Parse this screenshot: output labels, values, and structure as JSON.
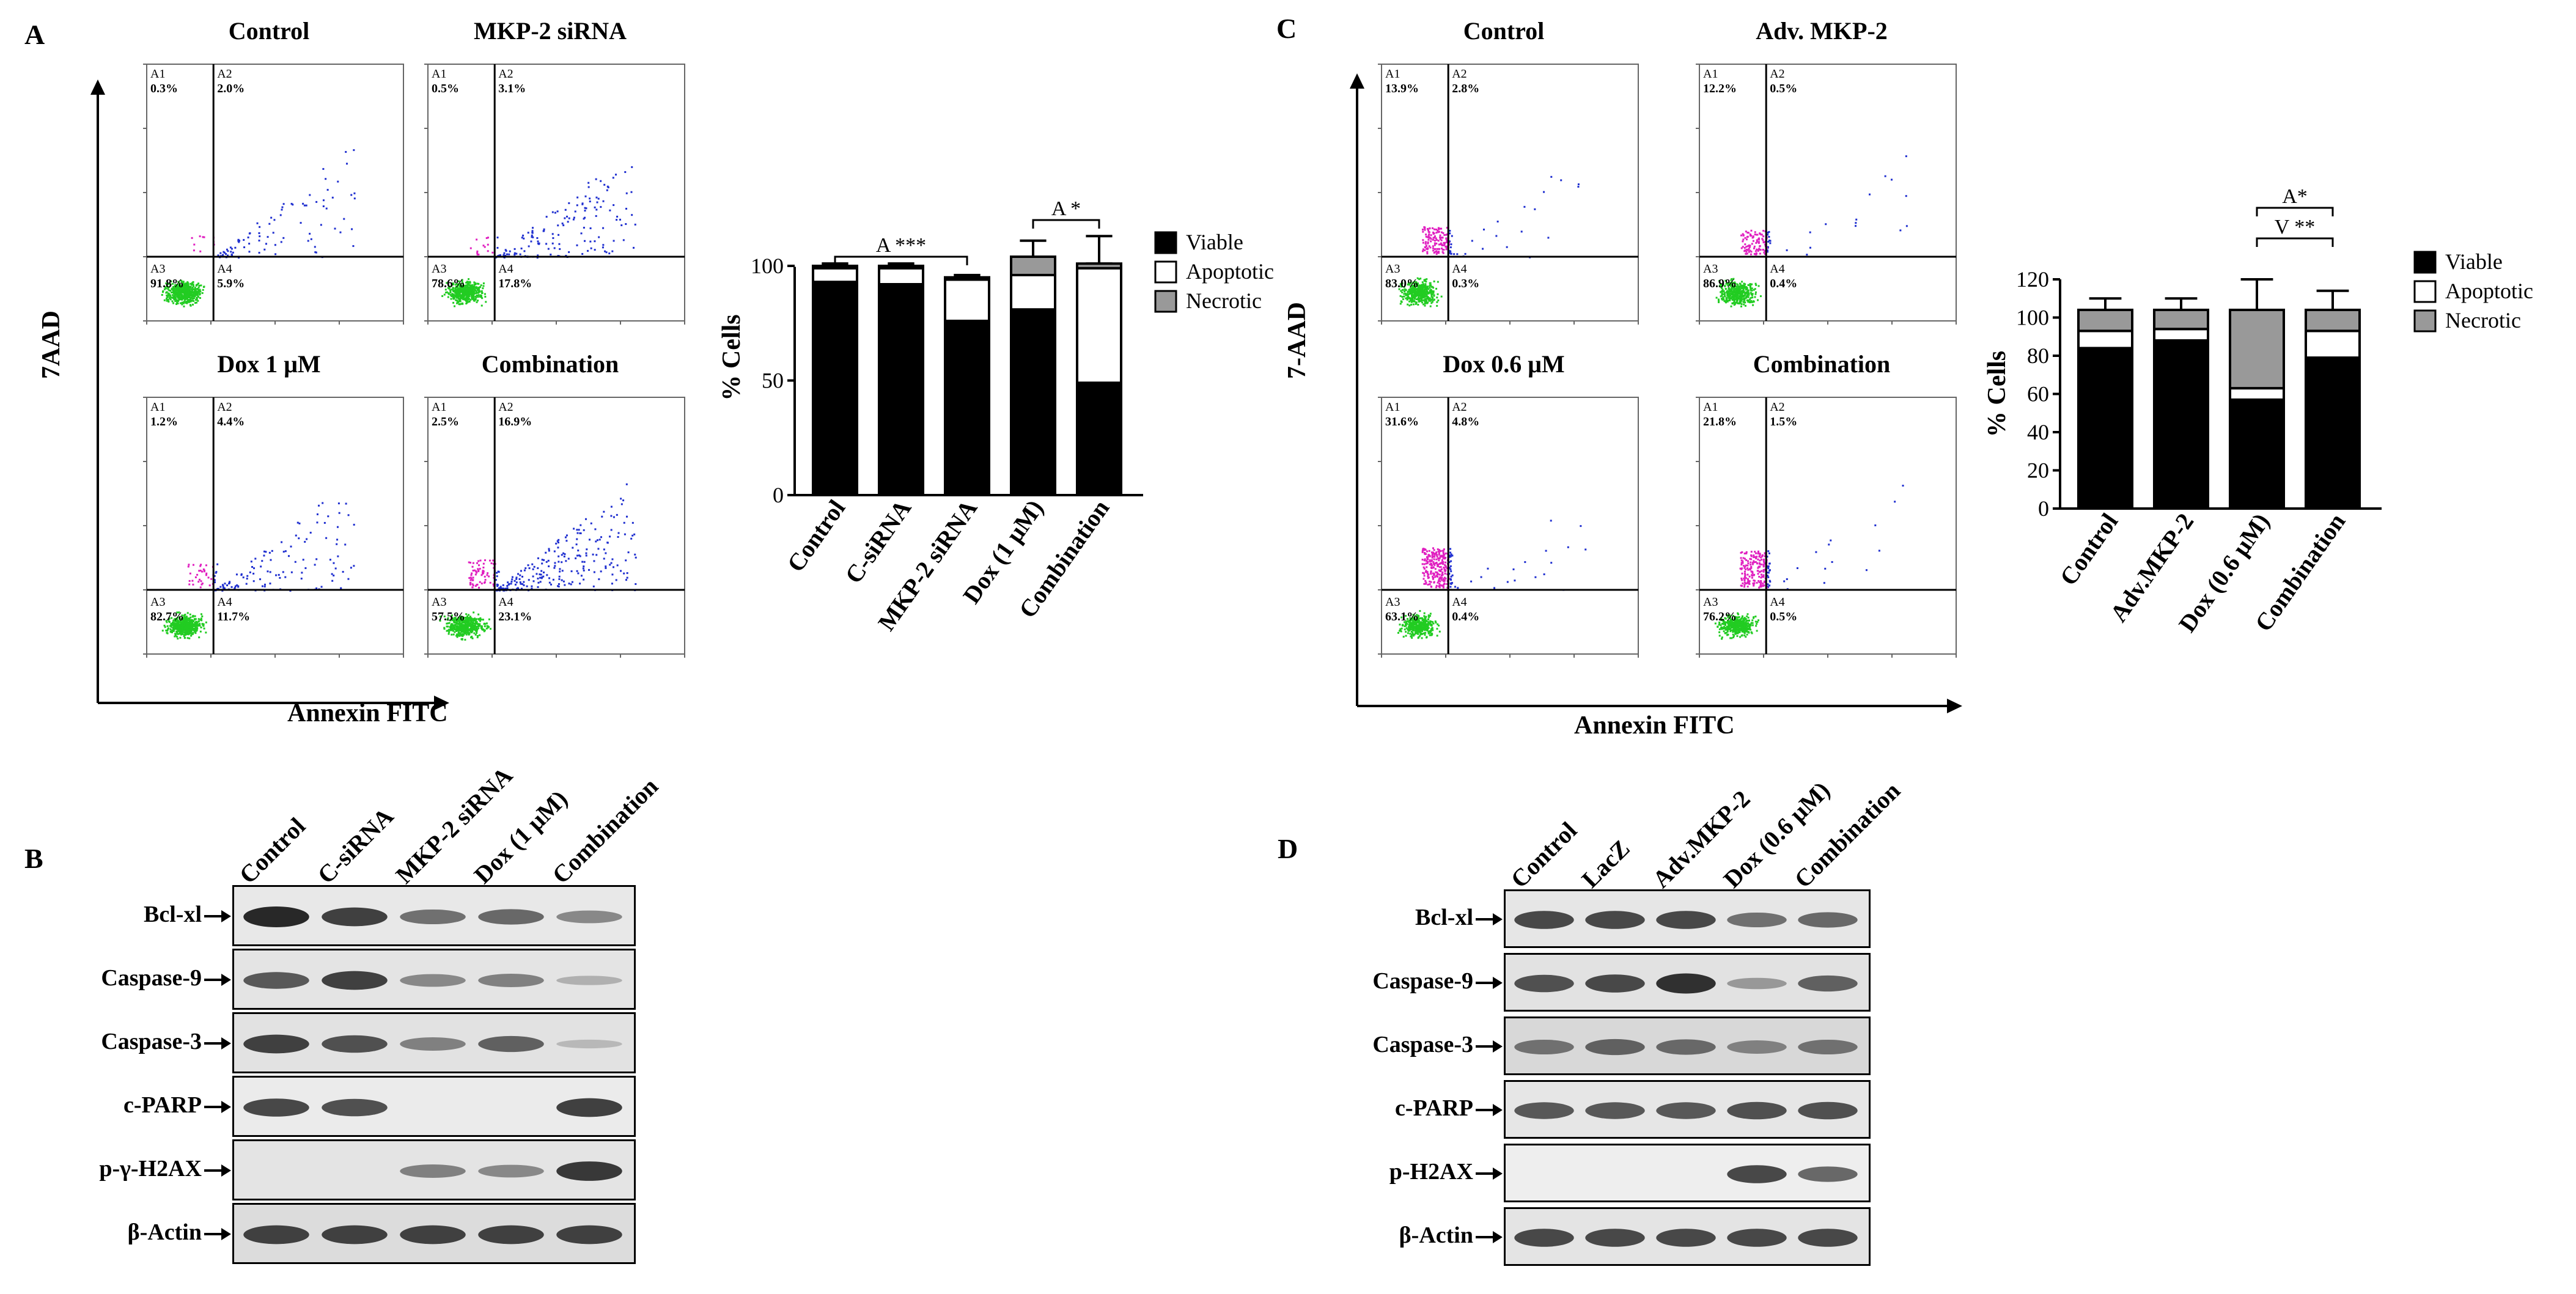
{
  "panel_a": {
    "letter": "A",
    "y_axis": "7AAD",
    "x_axis": "Annexin FITC",
    "plots": [
      {
        "title": "Control",
        "A1": "A1",
        "A1v": "0.3%",
        "A2": "A2",
        "A2v": "2.0%",
        "A3": "A3",
        "A3v": "91.8%",
        "A4": "A4",
        "A4v": "5.9%"
      },
      {
        "title": "MKP-2 siRNA",
        "A1": "A1",
        "A1v": "0.5%",
        "A2": "A2",
        "A2v": "3.1%",
        "A3": "A3",
        "A3v": "78.6%",
        "A4": "A4",
        "A4v": "17.8%"
      },
      {
        "title": "Dox 1 μM",
        "A1": "A1",
        "A1v": "1.2%",
        "A2": "A2",
        "A2v": "4.4%",
        "A3": "A3",
        "A3v": "82.7%",
        "A4": "A4",
        "A4v": "11.7%"
      },
      {
        "title": "Combination",
        "A1": "A1",
        "A1v": "2.5%",
        "A2": "A2",
        "A2v": "16.9%",
        "A3": "A3",
        "A3v": "57.5%",
        "A4": "A4",
        "A4v": "23.1%"
      }
    ]
  },
  "panel_c": {
    "letter": "C",
    "y_axis": "7-AAD",
    "x_axis": "Annexin FITC",
    "plots": [
      {
        "title": "Control",
        "A1": "A1",
        "A1v": "13.9%",
        "A2": "A2",
        "A2v": "2.8%",
        "A3": "A3",
        "A3v": "83.0%",
        "A4": "A4",
        "A4v": "0.3%"
      },
      {
        "title": "Adv. MKP-2",
        "A1": "A1",
        "A1v": "12.2%",
        "A2": "A2",
        "A2v": "0.5%",
        "A3": "A3",
        "A3v": "86.9%",
        "A4": "A4",
        "A4v": "0.4%"
      },
      {
        "title": "Dox 0.6 μM",
        "A1": "A1",
        "A1v": "31.6%",
        "A2": "A2",
        "A2v": "4.8%",
        "A3": "A3",
        "A3v": "63.1%",
        "A4": "A4",
        "A4v": "0.4%"
      },
      {
        "title": "Combination",
        "A1": "A1",
        "A1v": "21.8%",
        "A2": "A2",
        "A2v": "1.5%",
        "A3": "A3",
        "A3v": "76.2%",
        "A4": "A4",
        "A4v": "0.5%"
      }
    ]
  },
  "chart_data": [
    {
      "type": "bar",
      "stacked": true,
      "categories": [
        "Control",
        "C-siRNA",
        "MKP-2 siRNA",
        "Dox (1 μM)",
        "Combination"
      ],
      "series": [
        {
          "name": "Viable",
          "values": [
            93,
            92,
            76,
            81,
            49
          ],
          "errors": [
            3,
            2,
            6,
            5,
            12
          ],
          "color": "#000000"
        },
        {
          "name": "Apoptotic",
          "values": [
            6,
            7,
            18,
            15,
            50
          ],
          "errors": [
            2,
            2,
            2,
            3,
            2
          ],
          "color": "#ffffff"
        },
        {
          "name": "Necrotic",
          "values": [
            1,
            1,
            1,
            8,
            2
          ],
          "errors": [
            1,
            1,
            1,
            7,
            12
          ],
          "color": "#999999"
        }
      ],
      "ylabel": "% Cells",
      "ylim": [
        0,
        120
      ],
      "yticks": [
        "0",
        "50",
        "100"
      ],
      "annotations": [
        {
          "text": "A ***",
          "from": 0,
          "to": 2
        },
        {
          "text": "A *",
          "from": 3,
          "to": 4
        }
      ],
      "legend_position": "right"
    },
    {
      "type": "bar",
      "stacked": true,
      "categories": [
        "Control",
        "Adv.MKP-2",
        "Dox (0.6 μM)",
        "Combination"
      ],
      "series": [
        {
          "name": "Viable",
          "values": [
            84,
            88,
            57,
            79
          ],
          "errors": [
            2,
            3,
            2,
            3
          ],
          "color": "#000000"
        },
        {
          "name": "Apoptotic",
          "values": [
            9,
            6,
            6,
            14
          ],
          "errors": [
            2,
            2,
            2,
            3
          ],
          "color": "#ffffff"
        },
        {
          "name": "Necrotic",
          "values": [
            11,
            10,
            41,
            11
          ],
          "errors": [
            6,
            6,
            16,
            10
          ],
          "color": "#999999"
        }
      ],
      "ylabel": "% Cells",
      "ylim": [
        0,
        120
      ],
      "yticks": [
        "0",
        "20",
        "40",
        "60",
        "80",
        "100",
        "120"
      ],
      "annotations": [
        {
          "text": "A*",
          "from": 2,
          "to": 3
        },
        {
          "text": "V **",
          "from": 2,
          "to": 3
        }
      ],
      "legend_position": "right"
    }
  ],
  "panel_b": {
    "letter": "B",
    "lanes": [
      "Control",
      "C-siRNA",
      "MKP-2 siRNA",
      "Dox (1 μM)",
      "Combination"
    ],
    "rows": [
      "Bcl-xl",
      "Caspase-9",
      "Caspase-3",
      "c-PARP",
      "p-γ-H2AX",
      "β-Actin"
    ],
    "intensities": [
      [
        1.0,
        0.85,
        0.55,
        0.6,
        0.4
      ],
      [
        0.7,
        0.85,
        0.4,
        0.45,
        0.15
      ],
      [
        0.85,
        0.75,
        0.45,
        0.65,
        0.1
      ],
      [
        0.8,
        0.75,
        0,
        0,
        0.85
      ],
      [
        0,
        0,
        0.45,
        0.4,
        0.9
      ],
      [
        0.85,
        0.85,
        0.85,
        0.85,
        0.85
      ]
    ]
  },
  "panel_d": {
    "letter": "D",
    "lanes": [
      "Control",
      "LacZ",
      "Adv.MKP-2",
      "Dox (0.6 μM)",
      "Combination"
    ],
    "rows": [
      "Bcl-xl",
      "Caspase-9",
      "Caspase-3",
      "c-PARP",
      "p-H2AX",
      "β-Actin"
    ],
    "intensities": [
      [
        0.8,
        0.8,
        0.8,
        0.55,
        0.6
      ],
      [
        0.75,
        0.8,
        0.95,
        0.3,
        0.65
      ],
      [
        0.55,
        0.65,
        0.6,
        0.45,
        0.55
      ],
      [
        0.7,
        0.7,
        0.7,
        0.75,
        0.75
      ],
      [
        0,
        0,
        0,
        0.8,
        0.6
      ],
      [
        0.8,
        0.8,
        0.8,
        0.8,
        0.8
      ]
    ]
  }
}
